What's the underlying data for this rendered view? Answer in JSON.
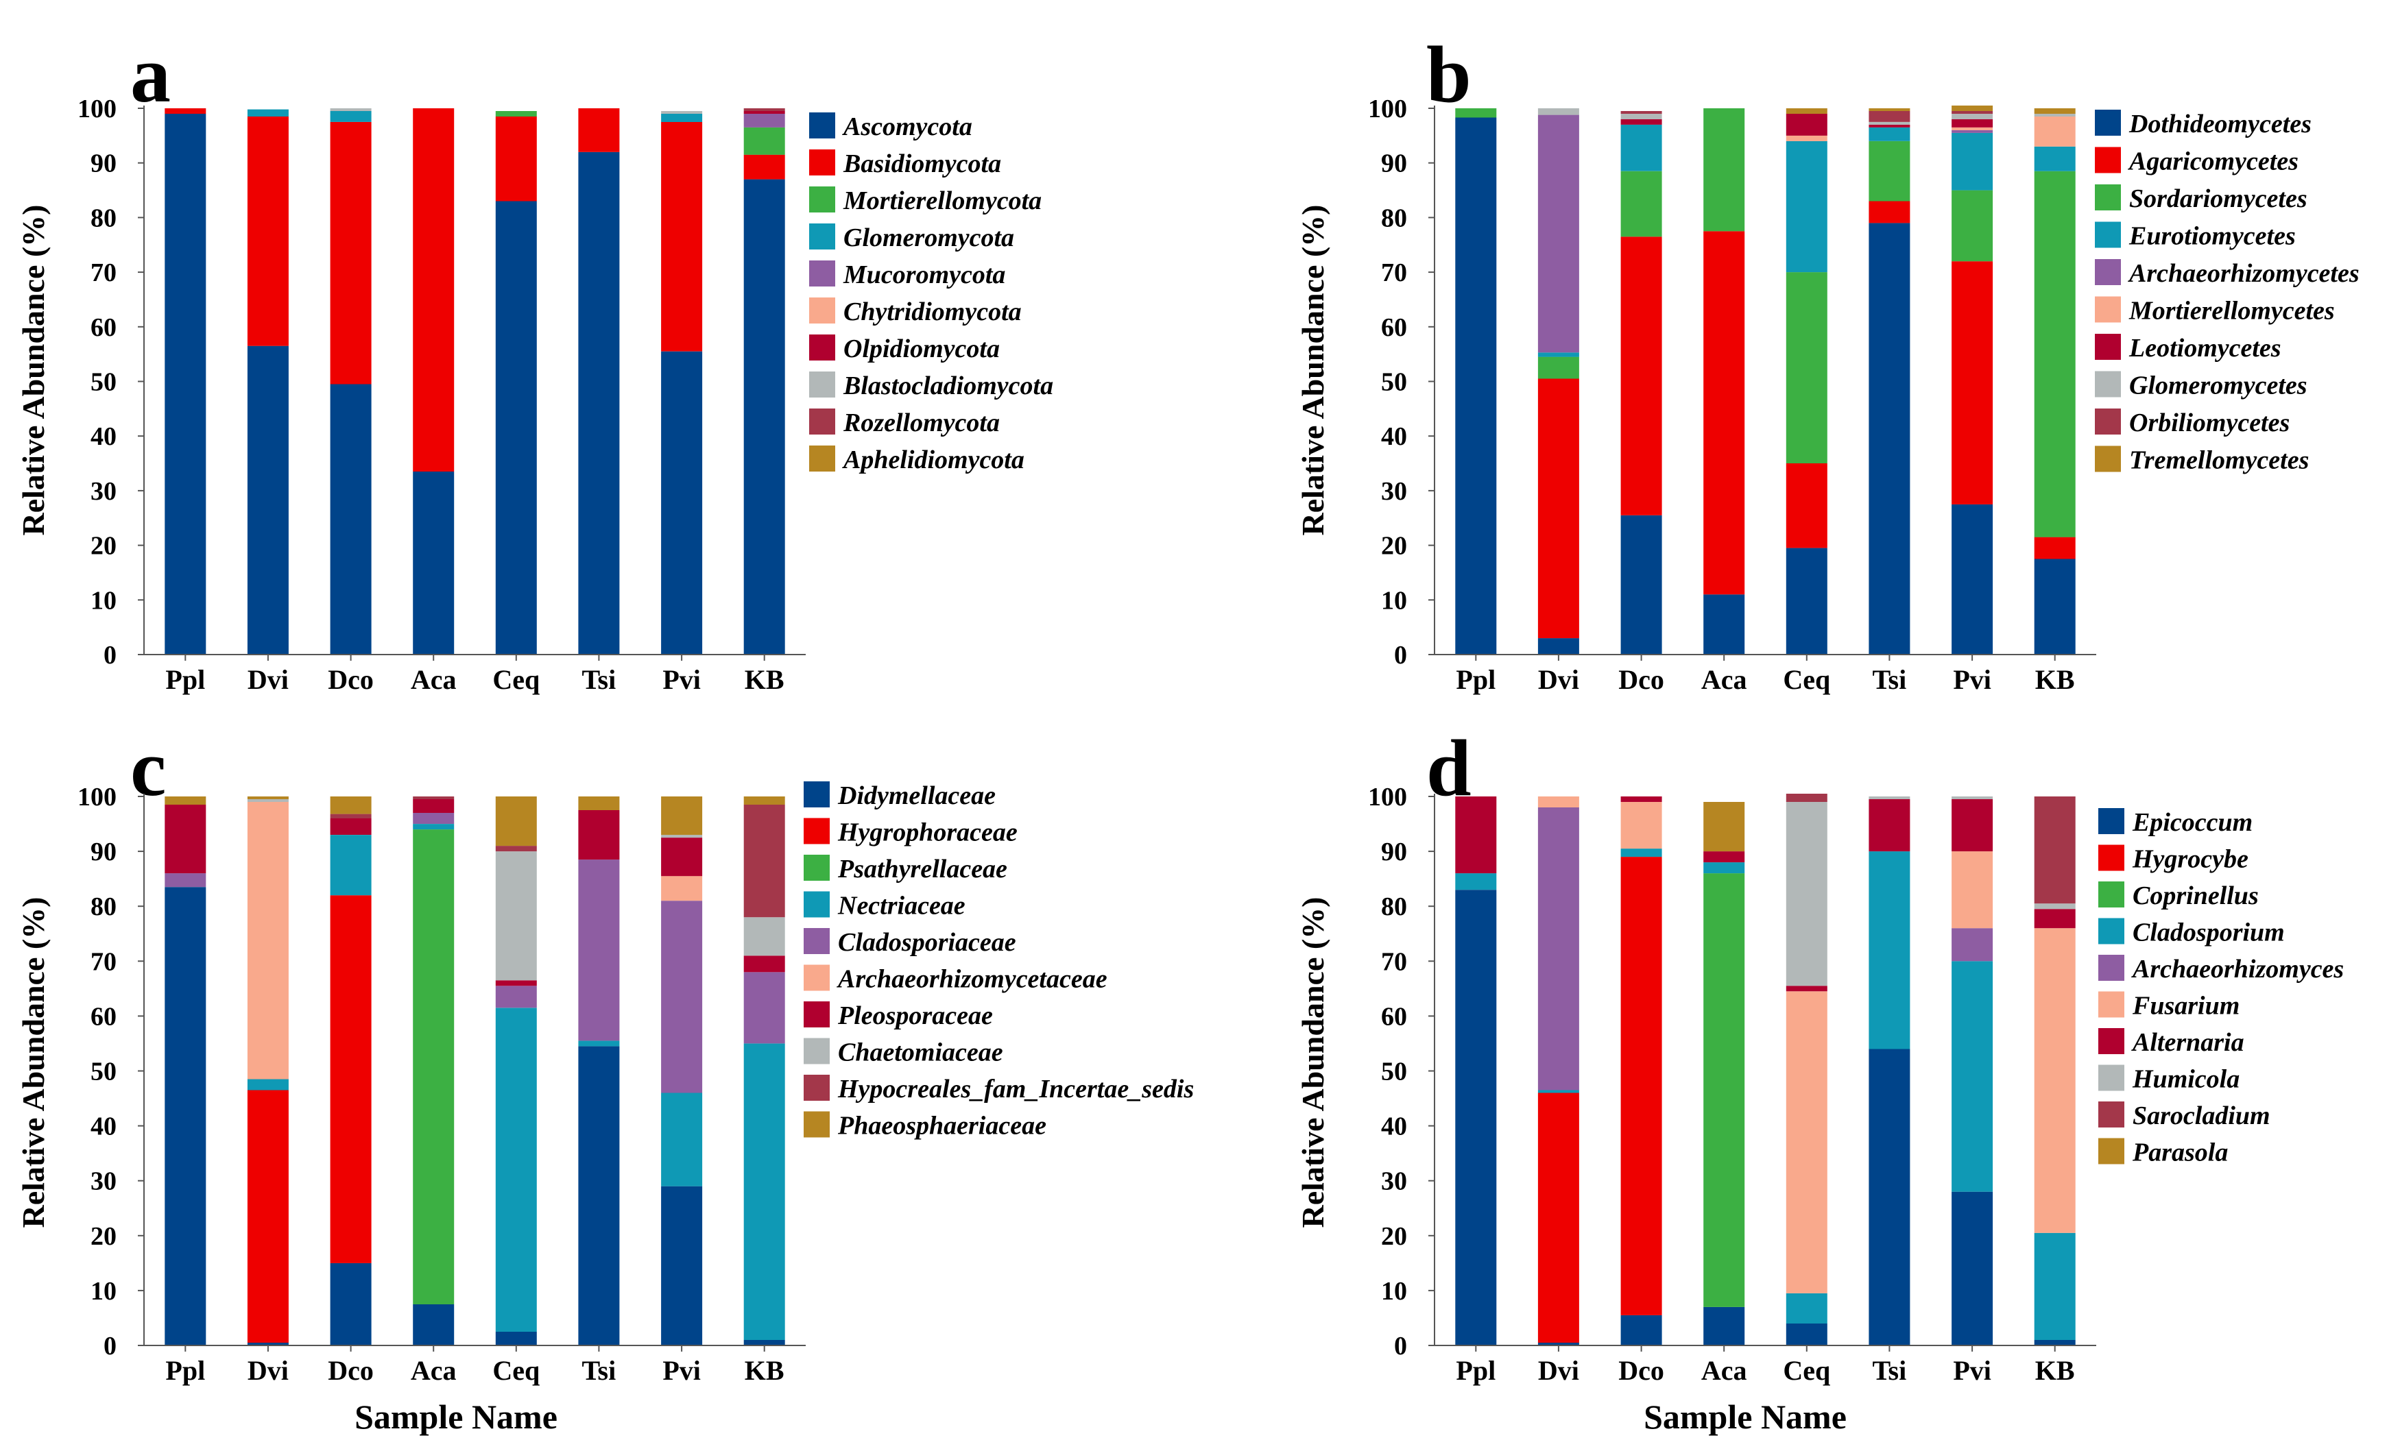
{
  "x_axis_label": "Sample Name",
  "chart_data": [
    {
      "type": "bar",
      "stacked": true,
      "panel": "a",
      "ylabel": "Relative  Abundance (%)",
      "xlabel": "",
      "ylim": [
        0,
        100
      ],
      "yticks": [
        "0",
        "10",
        "20",
        "30",
        "40",
        "50",
        "60",
        "70",
        "80",
        "90",
        "100"
      ],
      "categories": [
        "Ppl",
        "Dvi",
        "Dco",
        "Aca",
        "Ceq",
        "Tsi",
        "Pvi",
        "KB"
      ],
      "series": [
        {
          "name": "Ascomycota",
          "color": "#00448a",
          "values": [
            99,
            56.5,
            49.5,
            33.5,
            83,
            92,
            55.5,
            87
          ]
        },
        {
          "name": "Basidiomycota",
          "color": "#ee0000",
          "values": [
            1,
            42,
            48,
            66.5,
            15.5,
            8,
            42,
            4.5
          ]
        },
        {
          "name": "Mortierellomycota",
          "color": "#3cb043",
          "values": [
            0,
            0,
            0,
            0,
            1,
            0,
            0,
            5
          ]
        },
        {
          "name": "Glomeromycota",
          "color": "#0f99b5",
          "values": [
            0,
            1.3,
            2,
            0,
            0,
            0,
            1.5,
            0
          ]
        },
        {
          "name": "Mucoromycota",
          "color": "#8e5da2",
          "values": [
            0,
            0,
            0,
            0,
            0,
            0,
            0,
            2.5
          ]
        },
        {
          "name": "Chytridiomycota",
          "color": "#f9a98c",
          "values": [
            0,
            0,
            0,
            0,
            0,
            0,
            0,
            0
          ]
        },
        {
          "name": "Olpidiomycota",
          "color": "#b0002f",
          "values": [
            0,
            0,
            0,
            0,
            0,
            0,
            0,
            0.5
          ]
        },
        {
          "name": "Blastocladiomycota",
          "color": "#b2b8b8",
          "values": [
            0,
            0,
            0.5,
            0,
            0,
            0,
            0.5,
            0
          ]
        },
        {
          "name": "Rozellomycota",
          "color": "#a3374a",
          "values": [
            0,
            0,
            0,
            0,
            0,
            0,
            0,
            0.5
          ]
        },
        {
          "name": "Aphelidiomycota",
          "color": "#b68622",
          "values": [
            0,
            0,
            0,
            0,
            0,
            0,
            0,
            0
          ]
        }
      ]
    },
    {
      "type": "bar",
      "stacked": true,
      "panel": "b",
      "ylabel": "Relative  Abundance (%)",
      "xlabel": "",
      "ylim": [
        0,
        100
      ],
      "yticks": [
        "0",
        "10",
        "20",
        "30",
        "40",
        "50",
        "60",
        "70",
        "80",
        "90",
        "100"
      ],
      "categories": [
        "Ppl",
        "Dvi",
        "Dco",
        "Aca",
        "Ceq",
        "Tsi",
        "Pvi",
        "KB"
      ],
      "series": [
        {
          "name": "Dothideomycetes",
          "color": "#00448a",
          "values": [
            98.3,
            3,
            25.5,
            11,
            19.5,
            79,
            27.5,
            17.5
          ]
        },
        {
          "name": "Agaricomycetes",
          "color": "#ee0000",
          "values": [
            0,
            47.5,
            51,
            66.5,
            15.5,
            4,
            44.5,
            4
          ]
        },
        {
          "name": "Sordariomycetes",
          "color": "#3cb043",
          "values": [
            1.7,
            4,
            12,
            22.5,
            35,
            11,
            13,
            67
          ]
        },
        {
          "name": "Eurotiomycetes",
          "color": "#0f99b5",
          "values": [
            0,
            0.8,
            8.5,
            0,
            24,
            2.5,
            10.5,
            4.5
          ]
        },
        {
          "name": "Archaeorhizomycetes",
          "color": "#8e5da2",
          "values": [
            0,
            43.5,
            0,
            0,
            0,
            0,
            0.5,
            0
          ]
        },
        {
          "name": "Mortierellomycetes",
          "color": "#f9a98c",
          "values": [
            0,
            0,
            0,
            0,
            1,
            0,
            0.5,
            5.5
          ]
        },
        {
          "name": "Leotiomycetes",
          "color": "#b0002f",
          "values": [
            0,
            0,
            1,
            0,
            4,
            0.5,
            1.5,
            0
          ]
        },
        {
          "name": "Glomeromycetes",
          "color": "#b2b8b8",
          "values": [
            0,
            1.2,
            1,
            0,
            0,
            0.5,
            1,
            0.5
          ]
        },
        {
          "name": "Orbiliomycetes",
          "color": "#a3374a",
          "values": [
            0,
            0,
            0.5,
            0,
            0,
            2,
            0.5,
            0
          ]
        },
        {
          "name": "Tremellomycetes",
          "color": "#b68622",
          "values": [
            0,
            0,
            0,
            0,
            1,
            0.5,
            1,
            1
          ]
        }
      ]
    },
    {
      "type": "bar",
      "stacked": true,
      "panel": "c",
      "ylabel": "Relative  Abundance (%)",
      "xlabel": "Sample Name",
      "ylim": [
        0,
        100
      ],
      "yticks": [
        "0",
        "10",
        "20",
        "30",
        "40",
        "50",
        "60",
        "70",
        "80",
        "90",
        "100"
      ],
      "categories": [
        "Ppl",
        "Dvi",
        "Dco",
        "Aca",
        "Ceq",
        "Tsi",
        "Pvi",
        "KB"
      ],
      "series": [
        {
          "name": "Didymellaceae",
          "color": "#00448a",
          "values": [
            83.5,
            0.5,
            15,
            7.5,
            2.5,
            54.5,
            29,
            1
          ]
        },
        {
          "name": "Hygrophoraceae",
          "color": "#ee0000",
          "values": [
            0,
            46,
            67,
            0,
            0,
            0,
            0,
            0
          ]
        },
        {
          "name": "Psathyrellaceae",
          "color": "#3cb043",
          "values": [
            0,
            0,
            0,
            86.5,
            0,
            0,
            0,
            0
          ]
        },
        {
          "name": "Nectriaceae",
          "color": "#0f99b5",
          "values": [
            0,
            2,
            11,
            1,
            59,
            1,
            17,
            54
          ]
        },
        {
          "name": "Cladosporiaceae",
          "color": "#8e5da2",
          "values": [
            2.5,
            0,
            0,
            2,
            4,
            33,
            35,
            13
          ]
        },
        {
          "name": "Archaeorhizomycetaceae",
          "color": "#f9a98c",
          "values": [
            0,
            50.5,
            0,
            0,
            0,
            0,
            4.5,
            0
          ]
        },
        {
          "name": "Pleosporaceae",
          "color": "#b0002f",
          "values": [
            12.5,
            0,
            3,
            2.5,
            1,
            9,
            7,
            3
          ]
        },
        {
          "name": "Chaetomiaceae",
          "color": "#b2b8b8",
          "values": [
            0,
            0.5,
            0,
            0,
            23.5,
            0,
            0.5,
            7
          ]
        },
        {
          "name": "Hypocreales_fam_Incertae_sedis",
          "color": "#a3374a",
          "values": [
            0,
            0,
            0.8,
            0.5,
            1,
            0,
            0,
            20.5
          ]
        },
        {
          "name": "Phaeosphaeriaceae",
          "color": "#b68622",
          "values": [
            1.5,
            0.5,
            3.2,
            0,
            9,
            2.5,
            7,
            1.5
          ]
        }
      ]
    },
    {
      "type": "bar",
      "stacked": true,
      "panel": "d",
      "ylabel": "Relative  Abundance (%)",
      "xlabel": "Sample Name",
      "ylim": [
        0,
        100
      ],
      "yticks": [
        "0",
        "10",
        "20",
        "30",
        "40",
        "50",
        "60",
        "70",
        "80",
        "90",
        "100"
      ],
      "categories": [
        "Ppl",
        "Dvi",
        "Dco",
        "Aca",
        "Ceq",
        "Tsi",
        "Pvi",
        "KB"
      ],
      "series": [
        {
          "name": "Epicoccum",
          "color": "#00448a",
          "values": [
            83,
            0.5,
            5.5,
            7,
            4,
            54,
            28,
            1
          ]
        },
        {
          "name": "Hygrocybe",
          "color": "#ee0000",
          "values": [
            0,
            45.5,
            83.5,
            0,
            0,
            0,
            0,
            0
          ]
        },
        {
          "name": "Coprinellus",
          "color": "#3cb043",
          "values": [
            0,
            0,
            0,
            79,
            0,
            0,
            0,
            0
          ]
        },
        {
          "name": "Cladosporium",
          "color": "#0f99b5",
          "values": [
            3,
            0.5,
            1.5,
            2,
            5.5,
            36,
            42,
            19.5
          ]
        },
        {
          "name": "Archaeorhizomyces",
          "color": "#8e5da2",
          "values": [
            0,
            51.5,
            0,
            0,
            0,
            0,
            6,
            0
          ]
        },
        {
          "name": "Fusarium",
          "color": "#f9a98c",
          "values": [
            0,
            2,
            8.5,
            0,
            55,
            0,
            14,
            55.5
          ]
        },
        {
          "name": "Alternaria",
          "color": "#b0002f",
          "values": [
            14,
            0,
            1,
            2,
            1,
            9.5,
            9.5,
            3.5
          ]
        },
        {
          "name": "Humicola",
          "color": "#b2b8b8",
          "values": [
            0,
            0,
            0,
            0,
            33.5,
            0.5,
            0.5,
            1
          ]
        },
        {
          "name": "Sarocladium",
          "color": "#a3374a",
          "values": [
            0,
            0,
            0,
            0,
            1.5,
            0,
            0,
            19.5
          ]
        },
        {
          "name": "Parasola",
          "color": "#b68622",
          "values": [
            0,
            0,
            0,
            9,
            0,
            0,
            0,
            0
          ]
        }
      ]
    }
  ]
}
